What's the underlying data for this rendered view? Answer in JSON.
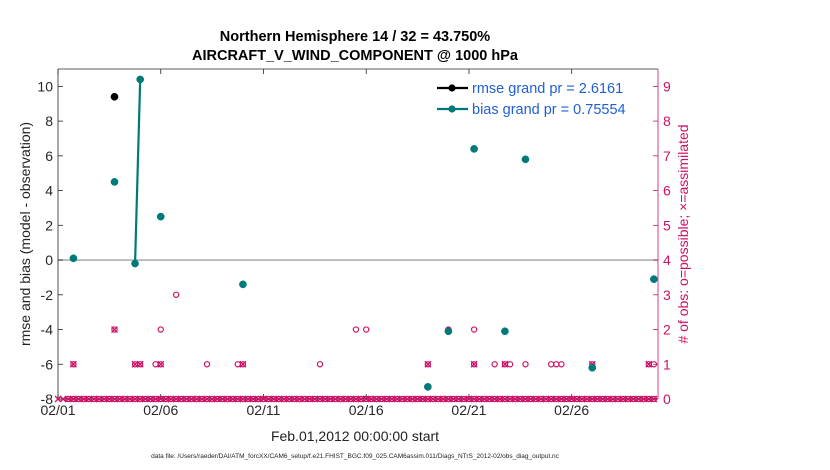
{
  "chart_data": {
    "type": "scatter",
    "title_line1": "Northern Hemisphere 14 / 32 = 43.750%",
    "title_line2": "AIRCRAFT_V_WIND_COMPONENT @ 1000 hPa",
    "xlabel": "Feb.01,2012 00:00:00 start",
    "ylabel_left": "rmse and bias (model - observation)",
    "ylabel_right": "# of obs: o=possible; ×=assimilated",
    "footer": "data file: /Users/raeder/DAI/ATM_forcXX/CAM6_setup/f.e21.FHIST_BGC.f09_025.CAM6assim.011/Diags_NTrS_2012-02/obs_diag_output.nc",
    "xlim": [
      1,
      30.2
    ],
    "ylim_left": [
      -8,
      11
    ],
    "ylim_right": [
      0,
      9.5
    ],
    "x_ticks": [
      {
        "x": 1,
        "label": "02/01"
      },
      {
        "x": 6,
        "label": "02/06"
      },
      {
        "x": 11,
        "label": "02/11"
      },
      {
        "x": 16,
        "label": "02/16"
      },
      {
        "x": 21,
        "label": "02/21"
      },
      {
        "x": 26,
        "label": "02/26"
      }
    ],
    "y_ticks_left": [
      -8,
      -6,
      -4,
      -2,
      0,
      2,
      4,
      6,
      8,
      10
    ],
    "y_ticks_right": [
      0,
      1,
      2,
      3,
      4,
      5,
      6,
      7,
      8,
      9
    ],
    "legend": {
      "placement": "top-right",
      "rmse_label": "rmse grand pr = 2.6161",
      "bias_label": "bias grand pr = 0.75554"
    },
    "colors": {
      "rmse": "#000000",
      "bias": "#007a78",
      "obs": "#cc1166",
      "legend_text": "#1f5fd6",
      "zero_line": "#b0b0b0"
    },
    "series": [
      {
        "name": "rmse",
        "points": [
          [
            3.75,
            9.4
          ]
        ],
        "segments": []
      },
      {
        "name": "bias",
        "points": [
          [
            1.75,
            0.1
          ],
          [
            3.75,
            4.5
          ],
          [
            4.75,
            -0.2
          ],
          [
            5.0,
            10.4
          ],
          [
            6.0,
            2.5
          ],
          [
            10.0,
            -1.4
          ],
          [
            19.0,
            -7.3
          ],
          [
            20.0,
            -4.1
          ],
          [
            21.25,
            6.4
          ],
          [
            22.75,
            -4.1
          ],
          [
            23.75,
            5.8
          ],
          [
            27.0,
            -6.2
          ],
          [
            30.0,
            -1.1
          ]
        ],
        "segments": [
          [
            [
              4.75,
              -0.2
            ],
            [
              5.0,
              10.4
            ]
          ]
        ]
      }
    ],
    "obs_possible": [
      [
        1.5,
        0
      ],
      [
        1.75,
        0
      ],
      [
        2.0,
        0
      ],
      [
        2.25,
        0
      ],
      [
        2.5,
        0
      ],
      [
        2.75,
        0
      ],
      [
        3.0,
        0
      ],
      [
        3.25,
        0
      ],
      [
        3.5,
        0
      ],
      [
        3.75,
        0
      ],
      [
        4.0,
        0
      ],
      [
        4.25,
        0
      ],
      [
        4.5,
        0
      ],
      [
        4.75,
        0
      ],
      [
        5.0,
        0
      ],
      [
        5.25,
        0
      ],
      [
        5.5,
        0
      ],
      [
        5.75,
        0
      ],
      [
        6.0,
        0
      ],
      [
        6.25,
        0
      ],
      [
        6.5,
        0
      ],
      [
        6.75,
        0
      ],
      [
        7.0,
        0
      ],
      [
        7.25,
        0
      ],
      [
        7.5,
        0
      ],
      [
        7.75,
        0
      ],
      [
        8.0,
        0
      ],
      [
        8.25,
        0
      ],
      [
        8.5,
        0
      ],
      [
        8.75,
        0
      ],
      [
        9.0,
        0
      ],
      [
        9.25,
        0
      ],
      [
        9.5,
        0
      ],
      [
        9.75,
        0
      ],
      [
        10.0,
        0
      ],
      [
        10.25,
        0
      ],
      [
        10.5,
        0
      ],
      [
        10.75,
        0
      ],
      [
        11.0,
        0
      ],
      [
        11.25,
        0
      ],
      [
        11.5,
        0
      ],
      [
        11.75,
        0
      ],
      [
        12.0,
        0
      ],
      [
        12.25,
        0
      ],
      [
        12.5,
        0
      ],
      [
        12.75,
        0
      ],
      [
        13.0,
        0
      ],
      [
        13.25,
        0
      ],
      [
        13.5,
        0
      ],
      [
        13.75,
        0
      ],
      [
        14.0,
        0
      ],
      [
        14.25,
        0
      ],
      [
        14.5,
        0
      ],
      [
        14.75,
        0
      ],
      [
        15.0,
        0
      ],
      [
        15.25,
        0
      ],
      [
        15.5,
        0
      ],
      [
        15.75,
        0
      ],
      [
        16.0,
        0
      ],
      [
        16.25,
        0
      ],
      [
        16.5,
        0
      ],
      [
        16.75,
        0
      ],
      [
        17.0,
        0
      ],
      [
        17.25,
        0
      ],
      [
        17.5,
        0
      ],
      [
        17.75,
        0
      ],
      [
        18.0,
        0
      ],
      [
        18.25,
        0
      ],
      [
        18.5,
        0
      ],
      [
        18.75,
        0
      ],
      [
        19.0,
        0
      ],
      [
        19.25,
        0
      ],
      [
        19.5,
        0
      ],
      [
        19.75,
        0
      ],
      [
        20.0,
        0
      ],
      [
        20.25,
        0
      ],
      [
        20.5,
        0
      ],
      [
        20.75,
        0
      ],
      [
        21.0,
        0
      ],
      [
        21.25,
        0
      ],
      [
        21.5,
        0
      ],
      [
        21.75,
        0
      ],
      [
        22.0,
        0
      ],
      [
        22.25,
        0
      ],
      [
        22.5,
        0
      ],
      [
        22.75,
        0
      ],
      [
        23.0,
        0
      ],
      [
        23.25,
        0
      ],
      [
        23.5,
        0
      ],
      [
        23.75,
        0
      ],
      [
        24.0,
        0
      ],
      [
        24.25,
        0
      ],
      [
        24.5,
        0
      ],
      [
        24.75,
        0
      ],
      [
        25.0,
        0
      ],
      [
        25.25,
        0
      ],
      [
        25.5,
        0
      ],
      [
        25.75,
        0
      ],
      [
        26.0,
        0
      ],
      [
        26.25,
        0
      ],
      [
        26.5,
        0
      ],
      [
        26.75,
        0
      ],
      [
        27.0,
        0
      ],
      [
        27.25,
        0
      ],
      [
        27.5,
        0
      ],
      [
        27.75,
        0
      ],
      [
        28.0,
        0
      ],
      [
        28.25,
        0
      ],
      [
        28.5,
        0
      ],
      [
        28.75,
        0
      ],
      [
        29.0,
        0
      ],
      [
        29.25,
        0
      ],
      [
        29.5,
        0
      ],
      [
        29.75,
        0
      ],
      [
        30.0,
        0
      ],
      [
        1.75,
        1
      ],
      [
        3.75,
        2
      ],
      [
        4.75,
        1
      ],
      [
        5.0,
        1
      ],
      [
        5.75,
        1
      ],
      [
        6.0,
        2
      ],
      [
        6.0,
        1
      ],
      [
        6.75,
        3
      ],
      [
        8.25,
        1
      ],
      [
        9.75,
        1
      ],
      [
        10.0,
        1
      ],
      [
        13.75,
        1
      ],
      [
        15.5,
        2
      ],
      [
        16.0,
        2
      ],
      [
        19.0,
        1
      ],
      [
        20.0,
        2
      ],
      [
        21.25,
        2
      ],
      [
        21.25,
        1
      ],
      [
        22.25,
        1
      ],
      [
        22.75,
        1
      ],
      [
        23.0,
        1
      ],
      [
        23.75,
        1
      ],
      [
        25.0,
        1
      ],
      [
        25.25,
        1
      ],
      [
        25.5,
        1
      ],
      [
        27.0,
        1
      ],
      [
        29.75,
        1
      ],
      [
        30.0,
        1
      ]
    ],
    "obs_assimilated": [
      [
        1.0,
        0
      ],
      [
        1.25,
        0
      ],
      [
        1.5,
        0
      ],
      [
        1.75,
        0
      ],
      [
        2.0,
        0
      ],
      [
        2.25,
        0
      ],
      [
        2.5,
        0
      ],
      [
        2.75,
        0
      ],
      [
        3.0,
        0
      ],
      [
        3.25,
        0
      ],
      [
        3.5,
        0
      ],
      [
        3.75,
        0
      ],
      [
        4.0,
        0
      ],
      [
        4.25,
        0
      ],
      [
        4.5,
        0
      ],
      [
        4.75,
        0
      ],
      [
        5.0,
        0
      ],
      [
        5.25,
        0
      ],
      [
        5.5,
        0
      ],
      [
        5.75,
        0
      ],
      [
        6.0,
        0
      ],
      [
        6.25,
        0
      ],
      [
        6.5,
        0
      ],
      [
        6.75,
        0
      ],
      [
        7.0,
        0
      ],
      [
        7.25,
        0
      ],
      [
        7.5,
        0
      ],
      [
        7.75,
        0
      ],
      [
        8.0,
        0
      ],
      [
        8.25,
        0
      ],
      [
        8.5,
        0
      ],
      [
        8.75,
        0
      ],
      [
        9.0,
        0
      ],
      [
        9.25,
        0
      ],
      [
        9.5,
        0
      ],
      [
        9.75,
        0
      ],
      [
        10.0,
        0
      ],
      [
        10.25,
        0
      ],
      [
        10.5,
        0
      ],
      [
        10.75,
        0
      ],
      [
        11.0,
        0
      ],
      [
        11.25,
        0
      ],
      [
        11.5,
        0
      ],
      [
        11.75,
        0
      ],
      [
        12.0,
        0
      ],
      [
        12.25,
        0
      ],
      [
        12.5,
        0
      ],
      [
        12.75,
        0
      ],
      [
        13.0,
        0
      ],
      [
        13.25,
        0
      ],
      [
        13.5,
        0
      ],
      [
        13.75,
        0
      ],
      [
        14.0,
        0
      ],
      [
        14.25,
        0
      ],
      [
        14.5,
        0
      ],
      [
        14.75,
        0
      ],
      [
        15.0,
        0
      ],
      [
        15.25,
        0
      ],
      [
        15.5,
        0
      ],
      [
        15.75,
        0
      ],
      [
        16.0,
        0
      ],
      [
        16.25,
        0
      ],
      [
        16.5,
        0
      ],
      [
        16.75,
        0
      ],
      [
        17.0,
        0
      ],
      [
        17.25,
        0
      ],
      [
        17.5,
        0
      ],
      [
        17.75,
        0
      ],
      [
        18.0,
        0
      ],
      [
        18.25,
        0
      ],
      [
        18.5,
        0
      ],
      [
        18.75,
        0
      ],
      [
        19.0,
        0
      ],
      [
        19.25,
        0
      ],
      [
        19.5,
        0
      ],
      [
        19.75,
        0
      ],
      [
        20.0,
        0
      ],
      [
        20.25,
        0
      ],
      [
        20.5,
        0
      ],
      [
        20.75,
        0
      ],
      [
        21.0,
        0
      ],
      [
        21.25,
        0
      ],
      [
        21.5,
        0
      ],
      [
        21.75,
        0
      ],
      [
        22.0,
        0
      ],
      [
        22.25,
        0
      ],
      [
        22.5,
        0
      ],
      [
        22.75,
        0
      ],
      [
        23.0,
        0
      ],
      [
        23.25,
        0
      ],
      [
        23.5,
        0
      ],
      [
        23.75,
        0
      ],
      [
        24.0,
        0
      ],
      [
        24.25,
        0
      ],
      [
        24.5,
        0
      ],
      [
        24.75,
        0
      ],
      [
        25.0,
        0
      ],
      [
        25.25,
        0
      ],
      [
        25.5,
        0
      ],
      [
        25.75,
        0
      ],
      [
        26.0,
        0
      ],
      [
        26.25,
        0
      ],
      [
        26.5,
        0
      ],
      [
        26.75,
        0
      ],
      [
        27.0,
        0
      ],
      [
        27.25,
        0
      ],
      [
        27.5,
        0
      ],
      [
        27.75,
        0
      ],
      [
        28.0,
        0
      ],
      [
        28.25,
        0
      ],
      [
        28.5,
        0
      ],
      [
        28.75,
        0
      ],
      [
        29.0,
        0
      ],
      [
        29.25,
        0
      ],
      [
        29.5,
        0
      ],
      [
        29.75,
        0
      ],
      [
        30.0,
        0
      ],
      [
        1.75,
        1
      ],
      [
        3.75,
        2
      ],
      [
        4.75,
        1
      ],
      [
        5.0,
        1
      ],
      [
        6.0,
        1
      ],
      [
        10.0,
        1
      ],
      [
        19.0,
        1
      ],
      [
        21.25,
        1
      ],
      [
        22.75,
        1
      ],
      [
        27.0,
        1
      ],
      [
        29.75,
        1
      ]
    ]
  }
}
